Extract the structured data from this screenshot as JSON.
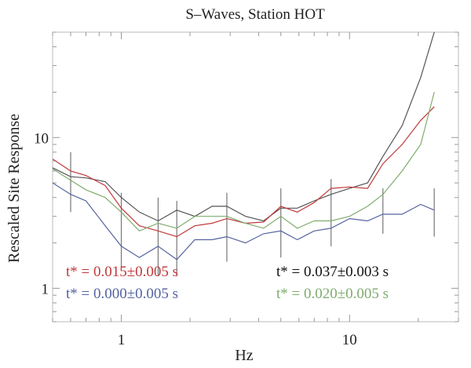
{
  "chart_data": {
    "type": "line",
    "title": "S–Waves, Station HOT",
    "xlabel": "Hz",
    "ylabel": "Rescaled Site Response",
    "x_scale": "log",
    "y_scale": "log",
    "xlim": [
      0.5,
      30
    ],
    "ylim": [
      0.6,
      50
    ],
    "x_ticks": [
      {
        "value": 1,
        "label": "1"
      },
      {
        "value": 10,
        "label": "10"
      }
    ],
    "y_ticks": [
      {
        "value": 1,
        "label": "1"
      },
      {
        "value": 10,
        "label": "10"
      }
    ],
    "grid": false,
    "x": [
      0.5,
      0.6,
      0.7,
      0.85,
      1.0,
      1.2,
      1.45,
      1.75,
      2.1,
      2.5,
      2.9,
      3.5,
      4.2,
      5.0,
      5.9,
      7.0,
      8.3,
      10.0,
      12.0,
      14.0,
      17.0,
      20.5,
      23.5
    ],
    "series": [
      {
        "color": "#555555",
        "values": [
          6.3,
          5.5,
          5.4,
          5.1,
          4.0,
          3.2,
          2.8,
          3.3,
          3.0,
          3.5,
          3.5,
          3.0,
          2.8,
          3.4,
          3.4,
          3.8,
          4.2,
          4.6,
          5.0,
          7.5,
          12.0,
          25.0,
          50.0
        ]
      },
      {
        "color": "#c0393b",
        "values": [
          7.2,
          6.0,
          5.6,
          4.8,
          3.4,
          2.6,
          2.4,
          2.2,
          2.6,
          2.7,
          2.9,
          2.7,
          2.75,
          3.5,
          3.2,
          3.7,
          4.6,
          4.7,
          4.6,
          6.7,
          9.0,
          13.0,
          16.0
        ]
      },
      {
        "color": "#7fac6e",
        "values": [
          6.2,
          5.2,
          4.5,
          4.0,
          3.2,
          2.4,
          2.7,
          2.5,
          3.0,
          3.0,
          3.0,
          2.7,
          2.5,
          3.0,
          2.5,
          2.8,
          2.8,
          3.0,
          3.5,
          4.2,
          6.0,
          9.0,
          20.0
        ]
      },
      {
        "color": "#5563a0",
        "values": [
          5.0,
          4.2,
          3.8,
          2.6,
          1.9,
          1.6,
          1.9,
          1.55,
          2.1,
          2.1,
          2.2,
          2.0,
          2.3,
          2.4,
          2.1,
          2.4,
          2.5,
          2.9,
          2.8,
          3.1,
          3.1,
          3.6,
          3.3
        ]
      }
    ],
    "error_bars": {
      "color": "#777777",
      "points": [
        {
          "x": 0.6,
          "low": 3.2,
          "high": 8.0
        },
        {
          "x": 1.0,
          "low": 1.3,
          "high": 4.3
        },
        {
          "x": 1.45,
          "low": 1.2,
          "high": 4.0
        },
        {
          "x": 1.75,
          "low": 1.2,
          "high": 3.8
        },
        {
          "x": 2.9,
          "low": 1.5,
          "high": 4.3
        },
        {
          "x": 5.0,
          "low": 1.6,
          "high": 4.6
        },
        {
          "x": 8.3,
          "low": 1.9,
          "high": 5.3
        },
        {
          "x": 14.0,
          "low": 2.3,
          "high": 4.6
        },
        {
          "x": 23.5,
          "low": 2.2,
          "high": 4.6
        }
      ]
    },
    "annotations": [
      {
        "text": "t*  =  0.015±0.005  s",
        "color": "#c0393b"
      },
      {
        "text": "t*  =  0.000±0.005  s",
        "color": "#5563a0"
      },
      {
        "text": "t*  =  0.037±0.003  s",
        "color": "#111111"
      },
      {
        "text": "t*  =  0.020±0.005  s",
        "color": "#7fac6e"
      }
    ]
  }
}
